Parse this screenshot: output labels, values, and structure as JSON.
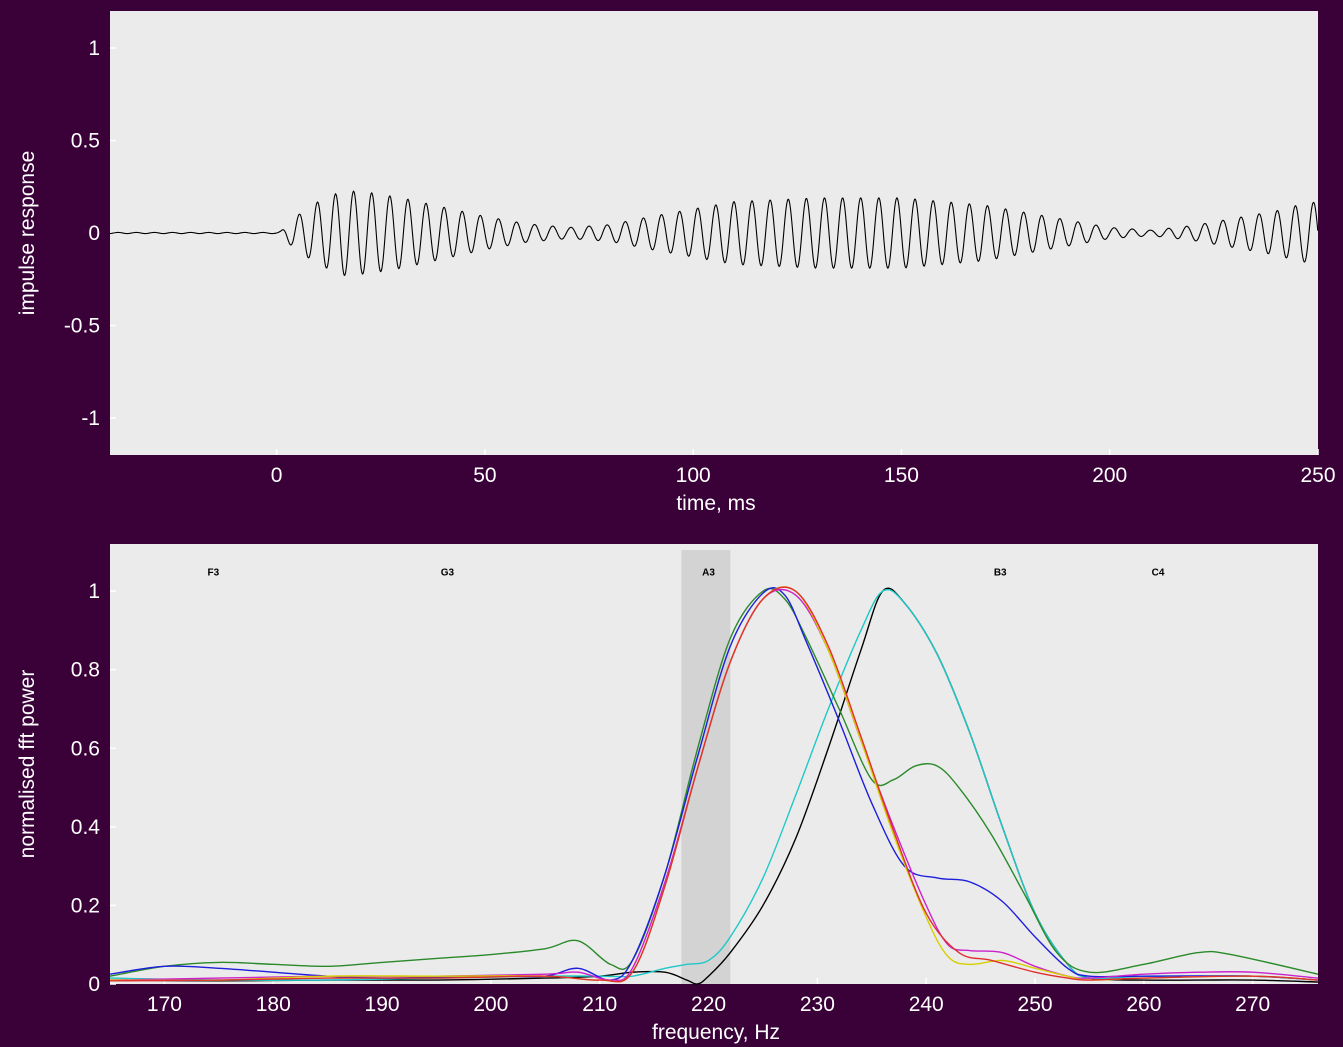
{
  "chart_data": [
    {
      "type": "line",
      "xlabel": "time, ms",
      "ylabel": "impulse response",
      "xlim": [
        -40,
        250
      ],
      "ylim": [
        -1.2,
        1.2
      ],
      "xticks": [
        0,
        50,
        100,
        150,
        200,
        250
      ],
      "yticks": [
        -1,
        -0.5,
        0,
        0.5,
        1
      ],
      "xtick_labels": [
        "0",
        "50",
        "100",
        "150",
        "200",
        "250"
      ],
      "ytick_labels": [
        "-1",
        "-0.5",
        "0",
        "0.5",
        "1"
      ],
      "grid": false,
      "background": "#ebebeb",
      "series": [
        {
          "color": "#000000",
          "carrier_hz": 230,
          "envelope": {
            "t": [
              -40,
              0,
              1,
              4,
              10,
              16,
              22,
              30,
              40,
              50,
              60,
              70,
              80,
              90,
              100,
              110,
              120,
              130,
              140,
              150,
              160,
              170,
              180,
              190,
              200,
              210,
              220,
              230,
              240,
              245,
              250
            ],
            "amp": [
              0.003,
              0.003,
              0.01,
              0.08,
              0.17,
              0.23,
              0.22,
              0.19,
              0.14,
              0.09,
              0.05,
              0.03,
              0.045,
              0.09,
              0.13,
              0.17,
              0.18,
              0.19,
              0.19,
              0.19,
              0.17,
              0.15,
              0.11,
              0.07,
              0.03,
              0.015,
              0.04,
              0.08,
              0.12,
              0.15,
              0.17
            ]
          }
        }
      ]
    },
    {
      "type": "line",
      "xlabel": "frequency, Hz",
      "ylabel": "normalised fft power",
      "xlim": [
        165,
        276
      ],
      "ylim": [
        0,
        1.12
      ],
      "xticks": [
        170,
        180,
        190,
        200,
        210,
        220,
        230,
        240,
        250,
        260,
        270
      ],
      "yticks": [
        0,
        0.2,
        0.4,
        0.6,
        0.8,
        1
      ],
      "xtick_labels": [
        "170",
        "180",
        "190",
        "200",
        "210",
        "220",
        "230",
        "240",
        "250",
        "260",
        "270"
      ],
      "ytick_labels": [
        "0",
        "0.2",
        "0.4",
        "0.6",
        "0.8",
        "1"
      ],
      "grid": false,
      "background": "#ebebeb",
      "highlight_band": {
        "x": [
          217.5,
          222
        ],
        "color": "#d3d3d3"
      },
      "annotations": [
        {
          "text": "F3",
          "x": 174.5,
          "y": 1.05
        },
        {
          "text": "G3",
          "x": 196,
          "y": 1.05
        },
        {
          "text": "A3",
          "x": 220,
          "y": 1.05
        },
        {
          "text": "B3",
          "x": 246.8,
          "y": 1.05
        },
        {
          "text": "C4",
          "x": 261.3,
          "y": 1.05
        }
      ],
      "series": [
        {
          "color": "#000000",
          "x": [
            165,
            175,
            185,
            195,
            205,
            210,
            213,
            216,
            218,
            219,
            220,
            222,
            225,
            228,
            231,
            234,
            236,
            238,
            241,
            244,
            247,
            250,
            253,
            255,
            260,
            265,
            270,
            276
          ],
          "y": [
            0.01,
            0.008,
            0.01,
            0.01,
            0.015,
            0.02,
            0.03,
            0.03,
            0.01,
            0.0,
            0.02,
            0.08,
            0.2,
            0.37,
            0.6,
            0.85,
            1.0,
            0.97,
            0.84,
            0.64,
            0.4,
            0.18,
            0.05,
            0.015,
            0.01,
            0.01,
            0.01,
            0.005
          ]
        },
        {
          "color": "#20c8c8",
          "x": [
            165,
            175,
            185,
            195,
            205,
            210,
            213,
            216,
            218,
            220,
            222,
            225,
            228,
            231,
            234,
            236,
            238,
            241,
            244,
            247,
            250,
            253,
            255,
            260,
            265,
            270,
            276
          ],
          "y": [
            0.015,
            0.01,
            0.01,
            0.015,
            0.02,
            0.02,
            0.02,
            0.04,
            0.05,
            0.06,
            0.12,
            0.27,
            0.48,
            0.7,
            0.9,
            1.0,
            0.97,
            0.84,
            0.64,
            0.4,
            0.18,
            0.05,
            0.015,
            0.02,
            0.02,
            0.02,
            0.01
          ]
        },
        {
          "color": "#2a8a2a",
          "x": [
            165,
            170,
            175,
            180,
            185,
            190,
            195,
            200,
            205,
            208,
            211,
            213,
            216,
            219,
            222,
            225,
            227,
            229,
            232,
            235,
            237,
            239,
            241,
            243,
            246,
            249,
            252,
            255,
            260,
            265,
            268,
            276
          ],
          "y": [
            0.02,
            0.045,
            0.055,
            0.05,
            0.045,
            0.055,
            0.065,
            0.075,
            0.09,
            0.11,
            0.05,
            0.06,
            0.28,
            0.6,
            0.88,
            1.0,
            0.98,
            0.88,
            0.7,
            0.52,
            0.52,
            0.555,
            0.555,
            0.5,
            0.38,
            0.23,
            0.08,
            0.03,
            0.05,
            0.08,
            0.075,
            0.025
          ]
        },
        {
          "color": "#1e1edc",
          "x": [
            165,
            170,
            175,
            180,
            185,
            190,
            200,
            205,
            208,
            211,
            213,
            216,
            219,
            222,
            225,
            227,
            229,
            232,
            235,
            238,
            241,
            244,
            247,
            250,
            253,
            255,
            260,
            270,
            276
          ],
          "y": [
            0.025,
            0.045,
            0.04,
            0.03,
            0.02,
            0.015,
            0.02,
            0.02,
            0.04,
            0.01,
            0.06,
            0.28,
            0.58,
            0.86,
            0.995,
            0.99,
            0.87,
            0.67,
            0.46,
            0.3,
            0.27,
            0.26,
            0.21,
            0.12,
            0.04,
            0.02,
            0.02,
            0.02,
            0.01
          ]
        },
        {
          "color": "#cc22cc",
          "x": [
            165,
            175,
            185,
            195,
            205,
            208,
            211,
            213,
            216,
            219,
            222,
            225,
            228,
            231,
            234,
            237,
            240,
            242,
            244,
            247,
            250,
            253,
            255,
            260,
            265,
            270,
            276
          ],
          "y": [
            0.01,
            0.015,
            0.02,
            0.02,
            0.025,
            0.03,
            0.01,
            0.04,
            0.26,
            0.55,
            0.82,
            0.98,
            0.99,
            0.85,
            0.62,
            0.4,
            0.2,
            0.1,
            0.085,
            0.08,
            0.045,
            0.02,
            0.015,
            0.025,
            0.03,
            0.03,
            0.015
          ]
        },
        {
          "color": "#d6d000",
          "x": [
            165,
            175,
            185,
            195,
            205,
            210,
            213,
            216,
            219,
            222,
            225,
            228,
            231,
            234,
            237,
            240,
            242,
            244,
            247,
            250,
            253,
            255,
            260,
            270,
            276
          ],
          "y": [
            0.01,
            0.01,
            0.02,
            0.02,
            0.02,
            0.01,
            0.03,
            0.25,
            0.55,
            0.82,
            0.98,
            1.0,
            0.85,
            0.62,
            0.38,
            0.17,
            0.07,
            0.05,
            0.06,
            0.04,
            0.02,
            0.01,
            0.015,
            0.02,
            0.01
          ]
        },
        {
          "color": "#e03030",
          "x": [
            165,
            175,
            185,
            195,
            205,
            210,
            213,
            216,
            219,
            222,
            225,
            228,
            231,
            234,
            237,
            240,
            243,
            246,
            250,
            253,
            255,
            260,
            270,
            276
          ],
          "y": [
            0.008,
            0.01,
            0.015,
            0.015,
            0.02,
            0.01,
            0.03,
            0.25,
            0.55,
            0.82,
            0.98,
            1.0,
            0.86,
            0.63,
            0.39,
            0.18,
            0.08,
            0.06,
            0.03,
            0.015,
            0.01,
            0.015,
            0.02,
            0.01
          ]
        }
      ]
    }
  ]
}
